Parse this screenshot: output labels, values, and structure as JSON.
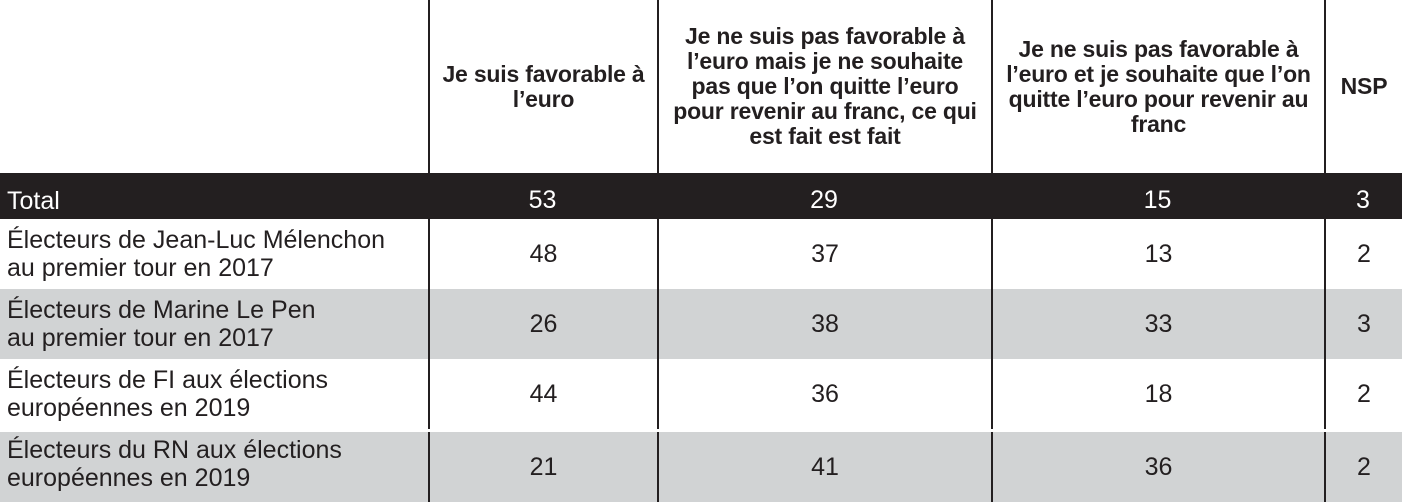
{
  "chart_data": {
    "type": "table",
    "columns": [
      "",
      "Je suis favorable à l’euro",
      "Je ne suis pas favorable à l’euro mais je ne souhaite pas que l’on quitte l’euro pour revenir au franc, ce qui est fait est fait",
      "Je ne suis pas favorable à l’euro et je souhaite que l’on quitte l’euro pour revenir au franc",
      "NSP"
    ],
    "rows": [
      {
        "label": "Total",
        "values": [
          "53",
          "29",
          "15",
          "3"
        ]
      },
      {
        "label": "Électeurs de Jean-Luc Mélenchon\nau premier tour en 2017",
        "values": [
          "48",
          "37",
          "13",
          "2"
        ]
      },
      {
        "label": "Électeurs de Marine Le Pen\nau premier tour en 2017",
        "values": [
          "26",
          "38",
          "33",
          "3"
        ]
      },
      {
        "label": "Électeurs de FI aux élections\neuropéennes en 2019",
        "values": [
          "44",
          "36",
          "18",
          "2"
        ]
      },
      {
        "label": "Électeurs du RN aux élections\neuropéennes en 2019",
        "values": [
          "21",
          "41",
          "36",
          "2"
        ]
      }
    ]
  },
  "colors": {
    "text": "#231f20",
    "total_row_bg": "#231f20",
    "total_row_text": "#ffffff",
    "shaded_row_bg": "#d1d3d4"
  }
}
